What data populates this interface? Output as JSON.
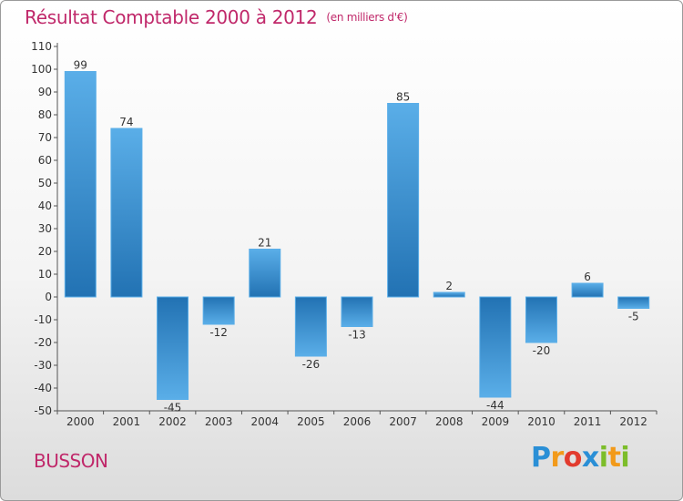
{
  "header": {
    "title": "Résultat Comptable 2000 à 2012",
    "subtitle": "(en milliers d'€)"
  },
  "commune": "BUSSON",
  "logo": {
    "letters": [
      {
        "char": "P",
        "color": "#2a8fd6"
      },
      {
        "char": "r",
        "color": "#f29a1a"
      },
      {
        "char": "o",
        "color": "#e23b2e"
      },
      {
        "char": "x",
        "color": "#2a8fd6"
      },
      {
        "char": "i",
        "color": "#7cbd2a"
      },
      {
        "char": "t",
        "color": "#f29a1a"
      },
      {
        "char": "i",
        "color": "#7cbd2a"
      }
    ]
  },
  "colors": {
    "bar_dark": "#2272b3",
    "bar_light": "#5aaee8",
    "title": "#c0286a"
  },
  "chart_data": {
    "type": "bar",
    "title": "Résultat Comptable 2000 à 2012",
    "subtitle": "(en milliers d'€)",
    "xlabel": "",
    "ylabel": "",
    "categories": [
      "2000",
      "2001",
      "2002",
      "2003",
      "2004",
      "2005",
      "2006",
      "2007",
      "2008",
      "2009",
      "2010",
      "2011",
      "2012"
    ],
    "values": [
      99,
      74,
      -45,
      -12,
      21,
      -26,
      -13,
      85,
      2,
      -44,
      -20,
      6,
      -5
    ],
    "ylim": [
      -50,
      110
    ],
    "yticks": [
      -50,
      -40,
      -30,
      -20,
      -10,
      0,
      10,
      20,
      30,
      40,
      50,
      60,
      70,
      80,
      90,
      100,
      110
    ],
    "grid": false,
    "legend": "none"
  }
}
